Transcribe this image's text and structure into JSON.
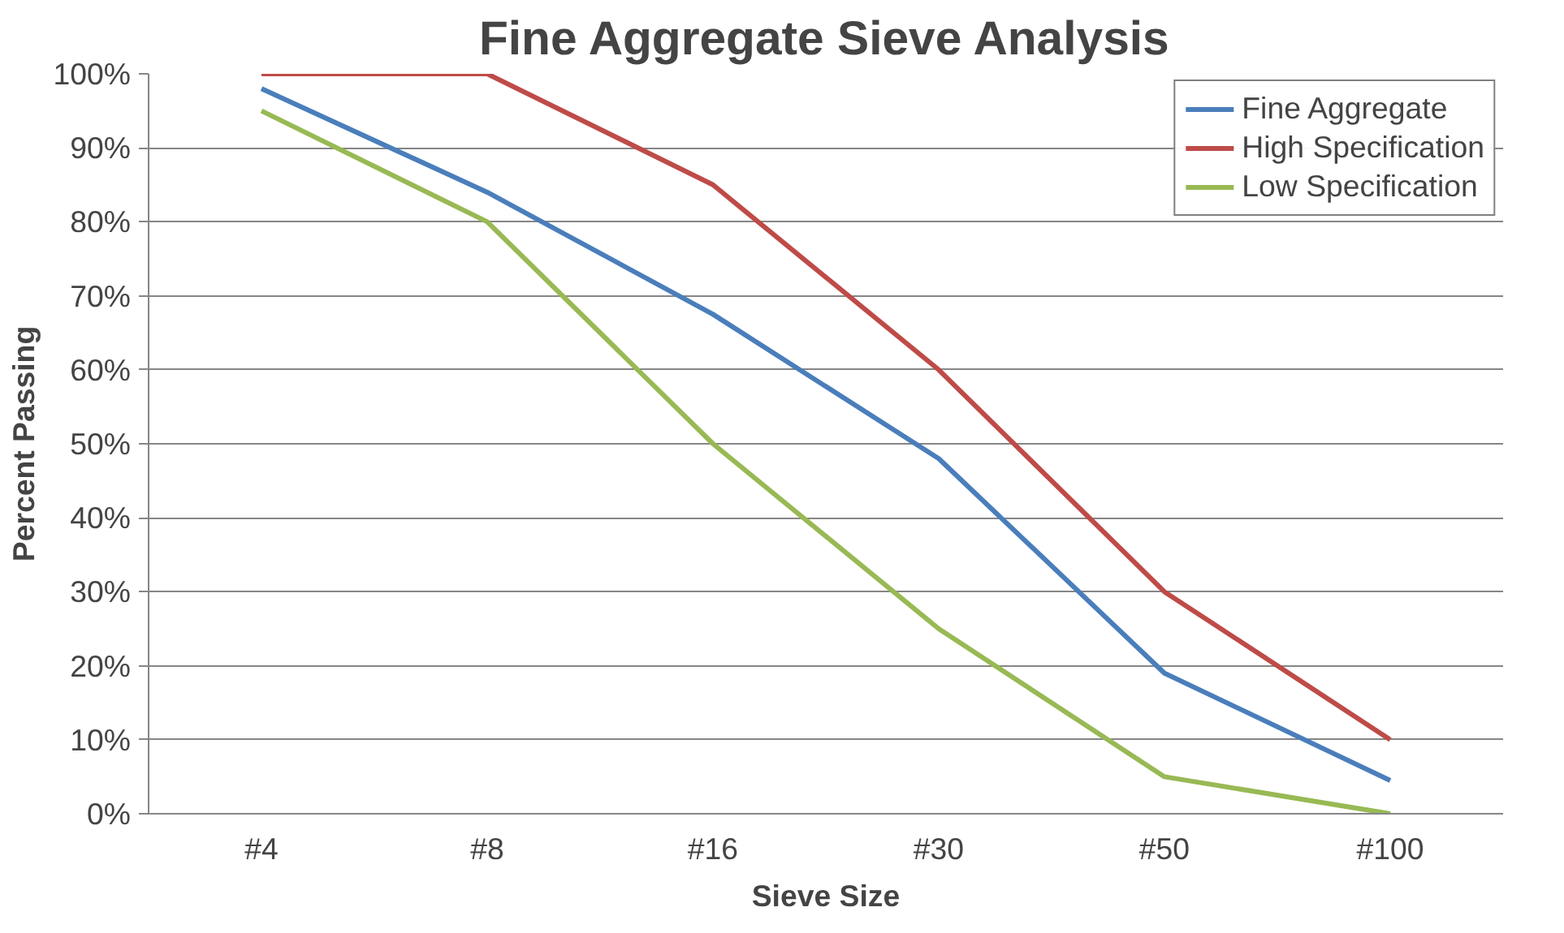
{
  "chart_data": {
    "type": "line",
    "title": "Fine Aggregate Sieve Analysis",
    "xlabel": "Sieve Size",
    "ylabel": "Percent Passing",
    "categories": [
      "#4",
      "#8",
      "#16",
      "#30",
      "#50",
      "#100"
    ],
    "series": [
      {
        "name": "Fine Aggregate",
        "color": "#4a7ebb",
        "values": [
          98,
          84,
          67.5,
          48,
          19,
          4.5
        ]
      },
      {
        "name": "High Specification",
        "color": "#be4b48",
        "values": [
          100,
          100,
          85,
          60,
          30,
          10
        ]
      },
      {
        "name": "Low Specification",
        "color": "#98b954",
        "values": [
          95,
          80,
          50,
          25,
          5,
          0
        ]
      }
    ],
    "ylim": [
      0,
      100
    ],
    "yticks": [
      {
        "value": 0,
        "label": "0%"
      },
      {
        "value": 10,
        "label": "10%"
      },
      {
        "value": 20,
        "label": "20%"
      },
      {
        "value": 30,
        "label": "30%"
      },
      {
        "value": 40,
        "label": "40%"
      },
      {
        "value": 50,
        "label": "50%"
      },
      {
        "value": 60,
        "label": "60%"
      },
      {
        "value": 70,
        "label": "70%"
      },
      {
        "value": 80,
        "label": "80%"
      },
      {
        "value": 90,
        "label": "90%"
      },
      {
        "value": 100,
        "label": "100%"
      }
    ],
    "grid": "y",
    "legend": "top right",
    "marker": "none",
    "line_style": "solid"
  }
}
